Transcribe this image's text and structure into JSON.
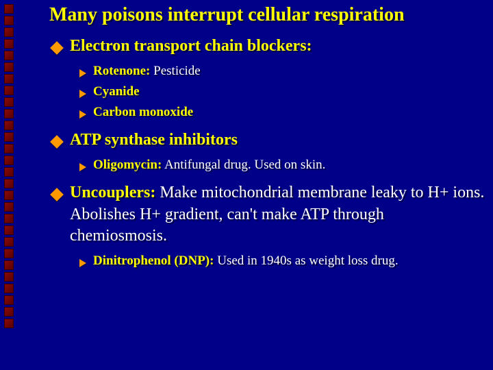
{
  "background_color": "#000088",
  "accent_yellow": "#ffff00",
  "accent_orange": "#ff9900",
  "text_white": "#ffffff",
  "title": "Many poisons interrupt cellular respiration",
  "sections": [
    {
      "head": "Electron transport chain blockers:",
      "body": "",
      "subs": [
        {
          "head": "Rotenone:",
          "body": " Pesticide"
        },
        {
          "head": "Cyanide",
          "body": ""
        },
        {
          "head": "Carbon monoxide",
          "body": ""
        }
      ]
    },
    {
      "head": "ATP synthase inhibitors",
      "body": "",
      "subs": [
        {
          "head": "Oligomycin:",
          "body": " Antifungal drug. Used on skin."
        }
      ]
    },
    {
      "head": "Uncouplers:",
      "body": " Make mitochondrial membrane leaky to H+ ions. Abolishes H+ gradient, can't make ATP through chemiosmosis.",
      "subs": [
        {
          "head": "Dinitrophenol (DNP):",
          "body": " Used in 1940s as weight loss drug."
        }
      ]
    }
  ],
  "side_square_count": 28
}
